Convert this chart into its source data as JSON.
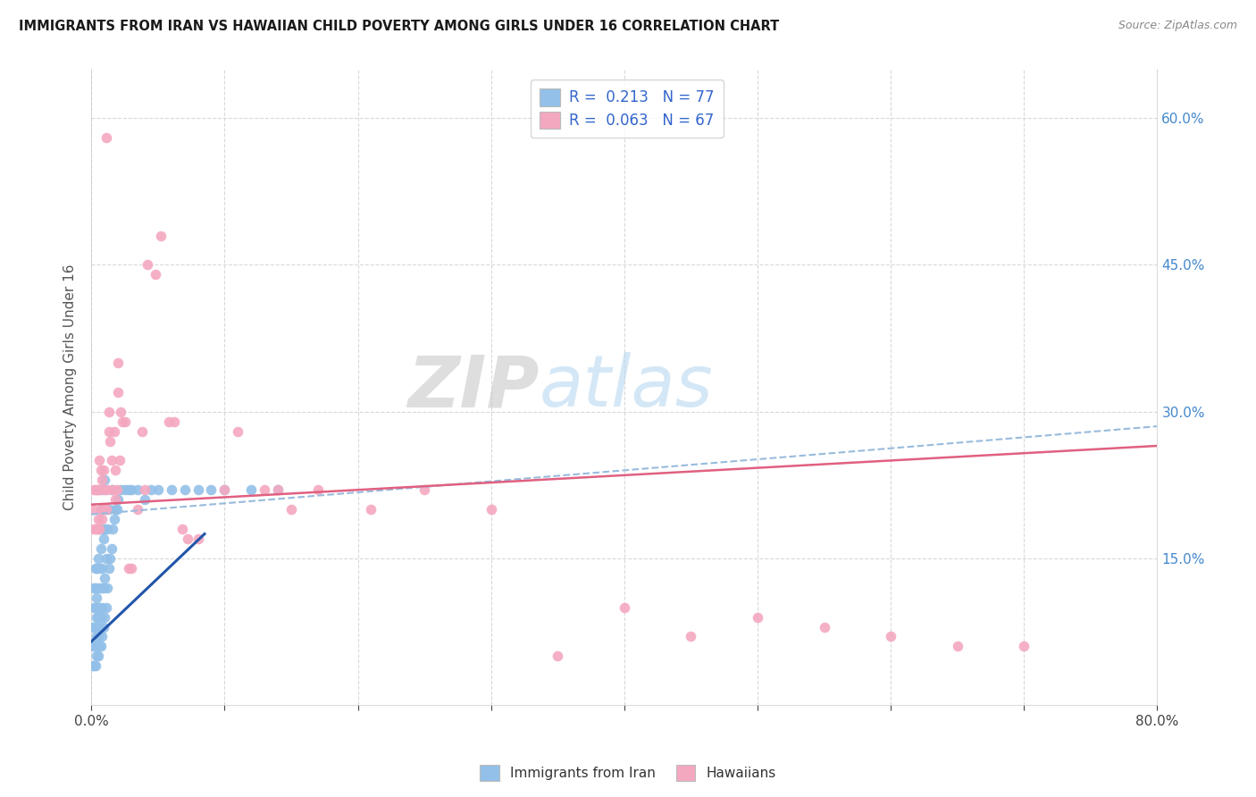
{
  "title": "IMMIGRANTS FROM IRAN VS HAWAIIAN CHILD POVERTY AMONG GIRLS UNDER 16 CORRELATION CHART",
  "source": "Source: ZipAtlas.com",
  "ylabel": "Child Poverty Among Girls Under 16",
  "xlim": [
    0.0,
    0.8
  ],
  "ylim": [
    0.0,
    0.65
  ],
  "color_blue": "#92c0e8",
  "color_pink": "#f4a8c0",
  "background_color": "#ffffff",
  "grid_color": "#d0d0d0",
  "blue_line_solid_color": "#2255aa",
  "blue_line_dash_color": "#99bbdd",
  "pink_line_color": "#e06080",
  "watermark_zip": "ZIP",
  "watermark_atlas": "atlas",
  "blue_scatter_x": [
    0.001,
    0.001,
    0.001,
    0.002,
    0.002,
    0.002,
    0.002,
    0.002,
    0.003,
    0.003,
    0.003,
    0.003,
    0.003,
    0.003,
    0.004,
    0.004,
    0.004,
    0.004,
    0.004,
    0.005,
    0.005,
    0.005,
    0.005,
    0.005,
    0.005,
    0.006,
    0.006,
    0.006,
    0.006,
    0.006,
    0.007,
    0.007,
    0.007,
    0.007,
    0.007,
    0.008,
    0.008,
    0.008,
    0.008,
    0.008,
    0.009,
    0.009,
    0.009,
    0.01,
    0.01,
    0.01,
    0.01,
    0.011,
    0.011,
    0.011,
    0.012,
    0.012,
    0.013,
    0.013,
    0.014,
    0.015,
    0.015,
    0.016,
    0.017,
    0.018,
    0.019,
    0.02,
    0.022,
    0.025,
    0.028,
    0.03,
    0.035,
    0.04,
    0.045,
    0.05,
    0.06,
    0.07,
    0.08,
    0.09,
    0.1,
    0.12,
    0.14
  ],
  "blue_scatter_y": [
    0.04,
    0.06,
    0.08,
    0.04,
    0.06,
    0.08,
    0.1,
    0.12,
    0.04,
    0.06,
    0.08,
    0.1,
    0.12,
    0.14,
    0.05,
    0.07,
    0.09,
    0.11,
    0.14,
    0.05,
    0.07,
    0.09,
    0.12,
    0.15,
    0.18,
    0.06,
    0.08,
    0.1,
    0.14,
    0.18,
    0.06,
    0.09,
    0.12,
    0.16,
    0.2,
    0.07,
    0.1,
    0.14,
    0.18,
    0.22,
    0.08,
    0.12,
    0.17,
    0.09,
    0.13,
    0.18,
    0.23,
    0.1,
    0.15,
    0.2,
    0.12,
    0.18,
    0.14,
    0.2,
    0.15,
    0.16,
    0.22,
    0.18,
    0.19,
    0.2,
    0.2,
    0.21,
    0.22,
    0.22,
    0.22,
    0.22,
    0.22,
    0.21,
    0.22,
    0.22,
    0.22,
    0.22,
    0.22,
    0.22,
    0.22,
    0.22,
    0.22
  ],
  "pink_scatter_x": [
    0.001,
    0.002,
    0.002,
    0.003,
    0.003,
    0.004,
    0.004,
    0.005,
    0.005,
    0.006,
    0.006,
    0.006,
    0.007,
    0.007,
    0.008,
    0.008,
    0.009,
    0.009,
    0.01,
    0.011,
    0.011,
    0.012,
    0.013,
    0.013,
    0.014,
    0.015,
    0.016,
    0.017,
    0.018,
    0.018,
    0.019,
    0.02,
    0.02,
    0.021,
    0.022,
    0.023,
    0.025,
    0.028,
    0.03,
    0.035,
    0.038,
    0.04,
    0.042,
    0.048,
    0.052,
    0.058,
    0.062,
    0.068,
    0.072,
    0.08,
    0.1,
    0.11,
    0.13,
    0.14,
    0.15,
    0.17,
    0.21,
    0.25,
    0.3,
    0.35,
    0.4,
    0.45,
    0.5,
    0.55,
    0.6,
    0.65,
    0.7
  ],
  "pink_scatter_y": [
    0.2,
    0.18,
    0.22,
    0.18,
    0.22,
    0.18,
    0.22,
    0.19,
    0.22,
    0.18,
    0.22,
    0.25,
    0.2,
    0.24,
    0.19,
    0.23,
    0.2,
    0.24,
    0.22,
    0.2,
    0.58,
    0.22,
    0.3,
    0.28,
    0.27,
    0.25,
    0.22,
    0.28,
    0.21,
    0.24,
    0.22,
    0.35,
    0.32,
    0.25,
    0.3,
    0.29,
    0.29,
    0.14,
    0.14,
    0.2,
    0.28,
    0.22,
    0.45,
    0.44,
    0.48,
    0.29,
    0.29,
    0.18,
    0.17,
    0.17,
    0.22,
    0.28,
    0.22,
    0.22,
    0.2,
    0.22,
    0.2,
    0.22,
    0.2,
    0.05,
    0.1,
    0.07,
    0.09,
    0.08,
    0.07,
    0.06,
    0.06
  ],
  "blue_solid_line": [
    [
      0.0,
      0.065
    ],
    [
      0.085,
      0.175
    ]
  ],
  "blue_dash_line": [
    [
      0.0,
      0.195
    ],
    [
      0.8,
      0.285
    ]
  ],
  "pink_solid_line": [
    [
      0.0,
      0.205
    ],
    [
      0.8,
      0.265
    ]
  ]
}
